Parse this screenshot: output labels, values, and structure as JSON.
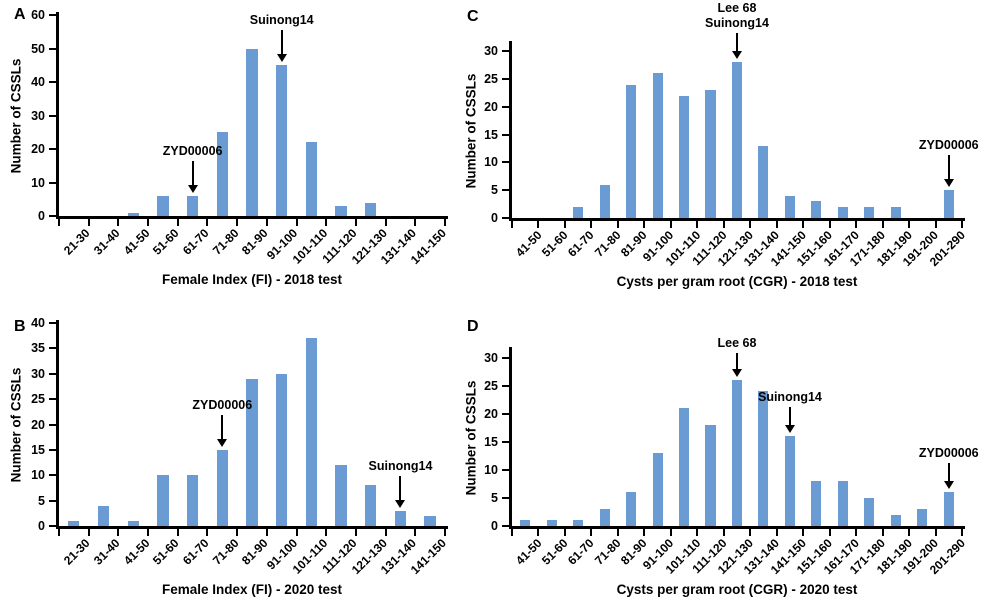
{
  "figure": {
    "bar_color": "#6a9bd2",
    "axis_color": "#000000",
    "text_color": "#000000",
    "background": "#ffffff"
  },
  "chart_data": [
    {
      "id": "A",
      "panel_label": "A",
      "type": "bar",
      "ylabel": "Number of CSSLs",
      "xlabel": "Female Index (FI) - 2018 test",
      "ylim": [
        0,
        60
      ],
      "yticks": [
        0,
        10,
        20,
        30,
        40,
        50,
        60
      ],
      "grid": false,
      "legend": null,
      "categories": [
        "21-30",
        "31-40",
        "41-50",
        "51-60",
        "61-70",
        "71-80",
        "81-90",
        "91-100",
        "101-110",
        "111-120",
        "121-130",
        "131-140",
        "141-150"
      ],
      "values": [
        0,
        0,
        1,
        6,
        6,
        25,
        50,
        45,
        22,
        3,
        4,
        0,
        0
      ],
      "annotations": [
        {
          "lines": [
            "ZYD00006"
          ],
          "category": "61-70",
          "category_index": 4,
          "points_to_value": 6
        },
        {
          "lines": [
            "Suinong14"
          ],
          "category": "91-100",
          "category_index": 7,
          "points_to_value": 45
        }
      ]
    },
    {
      "id": "B",
      "panel_label": "B",
      "type": "bar",
      "ylabel": "Number of CSSLs",
      "xlabel": "Female Index (FI) - 2020 test",
      "ylim": [
        0,
        40
      ],
      "yticks": [
        0,
        5,
        10,
        15,
        20,
        25,
        30,
        35,
        40
      ],
      "grid": false,
      "legend": null,
      "categories": [
        "21-30",
        "31-40",
        "41-50",
        "51-60",
        "61-70",
        "71-80",
        "81-90",
        "91-100",
        "101-110",
        "111-120",
        "121-130",
        "131-140",
        "141-150"
      ],
      "values": [
        1,
        4,
        1,
        10,
        10,
        15,
        29,
        30,
        37,
        12,
        8,
        3,
        2
      ],
      "annotations": [
        {
          "lines": [
            "ZYD00006"
          ],
          "category": "71-80",
          "category_index": 5,
          "points_to_value": 15
        },
        {
          "lines": [
            "Suinong14"
          ],
          "category": "131-140",
          "category_index": 11,
          "points_to_value": 3
        }
      ]
    },
    {
      "id": "C",
      "panel_label": "C",
      "type": "bar",
      "ylabel": "Number of CSSLs",
      "xlabel": "Cysts  per gram root (CGR)  - 2018 test",
      "ylim": [
        0,
        30
      ],
      "yticks": [
        0,
        5,
        10,
        15,
        20,
        25,
        30
      ],
      "grid": false,
      "legend": null,
      "categories": [
        "41-50",
        "51-60",
        "61-70",
        "71-80",
        "81-90",
        "91-100",
        "101-110",
        "111-120",
        "121-130",
        "131-140",
        "141-150",
        "151-160",
        "161-170",
        "171-180",
        "181-190",
        "191-200",
        "201-290"
      ],
      "values": [
        0,
        0,
        2,
        6,
        24,
        26,
        22,
        23,
        28,
        13,
        4,
        3,
        2,
        2,
        2,
        0,
        5
      ],
      "annotations": [
        {
          "lines": [
            "Lee 68",
            "Suinong14"
          ],
          "category": "121-130",
          "category_index": 8,
          "points_to_value": 28
        },
        {
          "lines": [
            "ZYD00006"
          ],
          "category": "201-290",
          "category_index": 16,
          "points_to_value": 5
        }
      ]
    },
    {
      "id": "D",
      "panel_label": "D",
      "type": "bar",
      "ylabel": "Number of CSSLs",
      "xlabel": "Cysts  per gram root (CGR)  - 2020 test",
      "ylim": [
        0,
        30
      ],
      "yticks": [
        0,
        5,
        10,
        15,
        20,
        25,
        30
      ],
      "grid": false,
      "legend": null,
      "categories": [
        "41-50",
        "51-60",
        "61-70",
        "71-80",
        "81-90",
        "91-100",
        "101-110",
        "111-120",
        "121-130",
        "131-140",
        "141-150",
        "151-160",
        "161-170",
        "171-180",
        "181-190",
        "191-200",
        "201-290"
      ],
      "values": [
        1,
        1,
        1,
        3,
        6,
        13,
        21,
        18,
        26,
        24,
        16,
        8,
        8,
        5,
        2,
        3,
        6
      ],
      "annotations": [
        {
          "lines": [
            "Lee 68"
          ],
          "category": "121-130",
          "category_index": 8,
          "points_to_value": 26
        },
        {
          "lines": [
            "Suinong14"
          ],
          "category": "141-150",
          "category_index": 10,
          "points_to_value": 16
        },
        {
          "lines": [
            "ZYD00006"
          ],
          "category": "201-290",
          "category_index": 16,
          "points_to_value": 6
        }
      ]
    }
  ]
}
